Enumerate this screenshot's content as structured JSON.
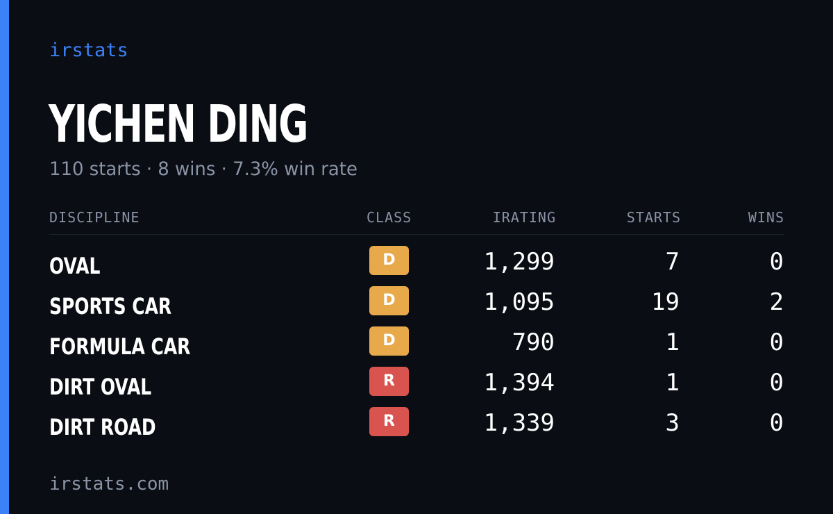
{
  "brand": "irstats",
  "player": {
    "name": "YICHEN DING",
    "summary": "110 starts · 8 wins · 7.3% win rate"
  },
  "table": {
    "headers": {
      "discipline": "DISCIPLINE",
      "class": "CLASS",
      "irating": "IRATING",
      "starts": "STARTS",
      "wins": "WINS"
    },
    "rows": [
      {
        "discipline": "OVAL",
        "class": "D",
        "class_color": "#e8a94a",
        "irating": "1,299",
        "starts": "7",
        "wins": "0"
      },
      {
        "discipline": "SPORTS CAR",
        "class": "D",
        "class_color": "#e8a94a",
        "irating": "1,095",
        "starts": "19",
        "wins": "2"
      },
      {
        "discipline": "FORMULA CAR",
        "class": "D",
        "class_color": "#e8a94a",
        "irating": "790",
        "starts": "1",
        "wins": "0"
      },
      {
        "discipline": "DIRT OVAL",
        "class": "R",
        "class_color": "#d9534f",
        "irating": "1,394",
        "starts": "1",
        "wins": "0"
      },
      {
        "discipline": "DIRT ROAD",
        "class": "R",
        "class_color": "#d9534f",
        "irating": "1,339",
        "starts": "3",
        "wins": "0"
      }
    ]
  },
  "footer": "irstats.com",
  "colors": {
    "background": "#0b0d14",
    "accent": "#3b82f6",
    "muted_text": "#8a94a6"
  }
}
